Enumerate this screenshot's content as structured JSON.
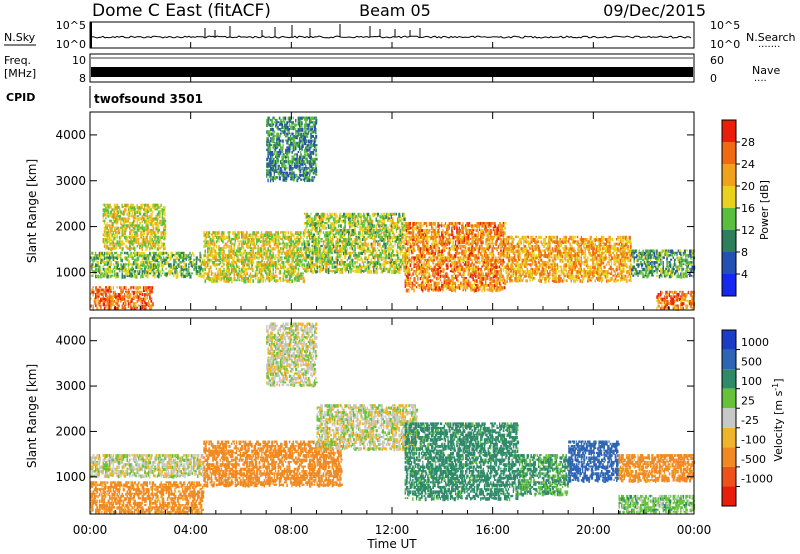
{
  "header": {
    "station": "Dome C East (fitACF)",
    "beam": "Beam 05",
    "date": "09/Dec/2015"
  },
  "nsky_panel": {
    "left_label": "N.Sky",
    "right_label": "N.Search",
    "right_dots": "·······",
    "y_ticks": [
      "10^5",
      "10^0"
    ]
  },
  "freq_panel": {
    "left_label_line1": "Freq.",
    "left_label_line2": "[MHz]",
    "left_ticks": [
      "10",
      "8"
    ],
    "right_label": "Nave",
    "right_dots": "····",
    "right_ticks": [
      "60",
      "0"
    ]
  },
  "cpid_panel": {
    "label": "CPID",
    "value": "twofsound 3501"
  },
  "x_axis": {
    "label": "Time UT",
    "ticks": [
      "00:00",
      "04:00",
      "08:00",
      "12:00",
      "16:00",
      "20:00",
      "00:00"
    ]
  },
  "power_colorbar": {
    "label": "Power [dB]",
    "ticks": [
      "4",
      "8",
      "12",
      "16",
      "20",
      "24",
      "28"
    ],
    "colors": [
      "#1428f0",
      "#2450b4",
      "#2e7d5b",
      "#5abf3c",
      "#e8d21c",
      "#f0a21a",
      "#f06a14",
      "#e8200a"
    ]
  },
  "velocity_colorbar": {
    "label": "Velocity [m s",
    "label_sup": "-1",
    "label_end": "]",
    "ticks": [
      "1000",
      "500",
      "100",
      "25",
      "-25",
      "-100",
      "-500",
      "-1000"
    ],
    "colors": [
      "#1c3cc8",
      "#2e64b4",
      "#2f8a6a",
      "#66c23a",
      "#c8c8c8",
      "#f0b42a",
      "#f08a20",
      "#f0501a",
      "#e81e0a"
    ]
  },
  "chart_data": [
    {
      "type": "heatmap",
      "name": "power",
      "ylabel": "Slant Range [km]",
      "xlabel": "Time UT",
      "xlim": [
        0,
        24
      ],
      "ylim": [
        180,
        4500
      ],
      "y_ticks": [
        1000,
        2000,
        3000,
        4000
      ],
      "x_ticks": [
        "00:00",
        "04:00",
        "08:00",
        "12:00",
        "16:00",
        "20:00",
        "00:00"
      ],
      "scale_unit": "dB",
      "scale_range": [
        0,
        32
      ],
      "regions": [
        {
          "t": [
            0.0,
            2.5
          ],
          "r": [
            200,
            700
          ],
          "v": 26
        },
        {
          "t": [
            0.0,
            4.5
          ],
          "r": [
            900,
            1450
          ],
          "v": 14
        },
        {
          "t": [
            0.5,
            3.0
          ],
          "r": [
            1500,
            2500
          ],
          "v": 18
        },
        {
          "t": [
            4.5,
            8.5
          ],
          "r": [
            800,
            1900
          ],
          "v": 18
        },
        {
          "t": [
            7.0,
            9.0
          ],
          "r": [
            3000,
            4400
          ],
          "v": 10
        },
        {
          "t": [
            8.5,
            12.5
          ],
          "r": [
            1000,
            2300
          ],
          "v": 16
        },
        {
          "t": [
            12.5,
            16.5
          ],
          "r": [
            600,
            2100
          ],
          "v": 24
        },
        {
          "t": [
            16.5,
            21.5
          ],
          "r": [
            800,
            1800
          ],
          "v": 22
        },
        {
          "t": [
            21.5,
            24.0
          ],
          "r": [
            900,
            1500
          ],
          "v": 12
        },
        {
          "t": [
            22.5,
            24.0
          ],
          "r": [
            200,
            600
          ],
          "v": 25
        }
      ]
    },
    {
      "type": "heatmap",
      "name": "velocity",
      "ylabel": "Slant Range [km]",
      "xlabel": "Time UT",
      "xlim": [
        0,
        24
      ],
      "ylim": [
        180,
        4500
      ],
      "y_ticks": [
        1000,
        2000,
        3000,
        4000
      ],
      "x_ticks": [
        "00:00",
        "04:00",
        "08:00",
        "12:00",
        "16:00",
        "20:00",
        "00:00"
      ],
      "scale_unit": "m s-1",
      "regions": [
        {
          "t": [
            0.0,
            4.5
          ],
          "r": [
            1000,
            1500
          ],
          "v": 0
        },
        {
          "t": [
            0.0,
            4.5
          ],
          "r": [
            200,
            900
          ],
          "v": -150
        },
        {
          "t": [
            4.5,
            10.0
          ],
          "r": [
            800,
            1800
          ],
          "v": -200
        },
        {
          "t": [
            7.0,
            9.0
          ],
          "r": [
            3000,
            4400
          ],
          "v": 0
        },
        {
          "t": [
            9.0,
            13.0
          ],
          "r": [
            1600,
            2600
          ],
          "v": 0
        },
        {
          "t": [
            12.5,
            17.0
          ],
          "r": [
            500,
            2200
          ],
          "v": 150
        },
        {
          "t": [
            17.0,
            19.0
          ],
          "r": [
            600,
            1500
          ],
          "v": 120
        },
        {
          "t": [
            19.0,
            21.0
          ],
          "r": [
            900,
            1800
          ],
          "v": 800
        },
        {
          "t": [
            21.0,
            24.0
          ],
          "r": [
            900,
            1500
          ],
          "v": -150
        },
        {
          "t": [
            21.0,
            24.0
          ],
          "r": [
            200,
            600
          ],
          "v": 60
        }
      ]
    }
  ]
}
